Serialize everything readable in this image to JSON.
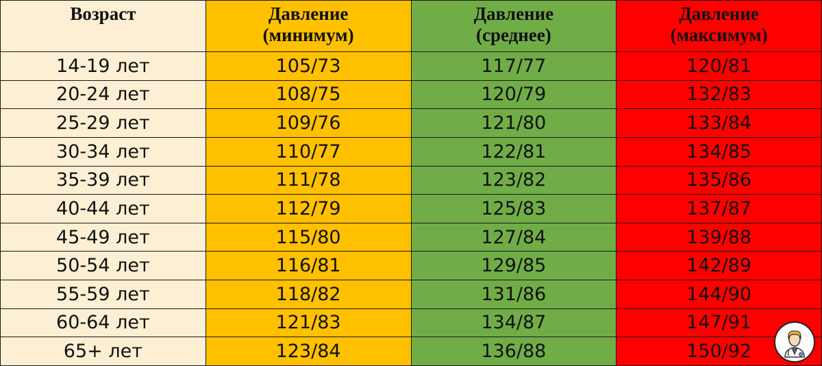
{
  "headers": {
    "age": "Возраст",
    "min_line1": "Давление",
    "min_line2": "(минимум)",
    "avg_line1": "Давление",
    "avg_line2": "(среднее)",
    "max_line1": "Давление",
    "max_line2": "(максимум)"
  },
  "colors": {
    "age": "#FDEFD3",
    "min": "#FFC000",
    "avg": "#70AD47",
    "max": "#FF0000"
  },
  "rows": [
    {
      "age": "14-19 лет",
      "min": "105/73",
      "avg": "117/77",
      "max": "120/81"
    },
    {
      "age": "20-24 лет",
      "min": "108/75",
      "avg": "120/79",
      "max": "132/83"
    },
    {
      "age": "25-29 лет",
      "min": "109/76",
      "avg": "121/80",
      "max": "133/84"
    },
    {
      "age": "30-34 лет",
      "min": "110/77",
      "avg": "122/81",
      "max": "134/85"
    },
    {
      "age": "35-39 лет",
      "min": "111/78",
      "avg": "123/82",
      "max": "135/86"
    },
    {
      "age": "40-44 лет",
      "min": "112/79",
      "avg": "125/83",
      "max": "137/87"
    },
    {
      "age": "45-49 лет",
      "min": "115/80",
      "avg": "127/84",
      "max": "139/88"
    },
    {
      "age": "50-54 лет",
      "min": "116/81",
      "avg": "129/85",
      "max": "142/89"
    },
    {
      "age": "55-59 лет",
      "min": "118/82",
      "avg": "131/86",
      "max": "144/90"
    },
    {
      "age": "60-64 лет",
      "min": "121/83",
      "avg": "134/87",
      "max": "147/91"
    },
    {
      "age": "65+ лет",
      "min": "123/84",
      "avg": "136/88",
      "max": "150/92"
    }
  ],
  "logo": {
    "icon": "doctor-icon"
  }
}
